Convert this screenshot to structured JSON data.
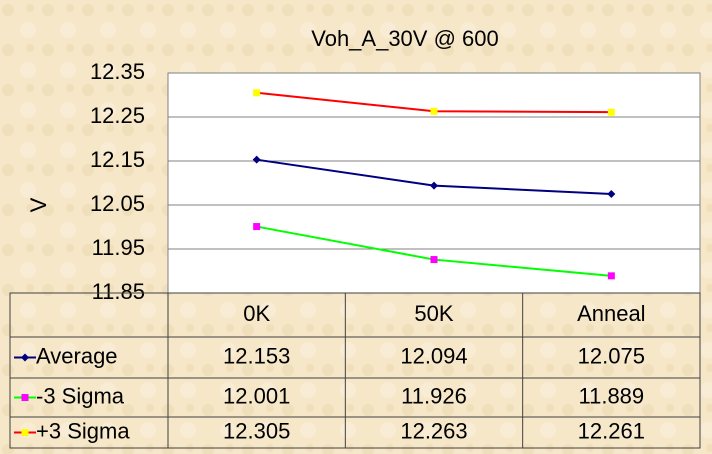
{
  "chart_data": {
    "type": "line",
    "title": "Voh_A_30V @ 600",
    "y_label": "V",
    "categories": [
      "0K",
      "50K",
      "Anneal"
    ],
    "series": [
      {
        "name": "Average",
        "color": "#000080",
        "marker_color": "#000080",
        "marker": "diamond",
        "values": [
          12.153,
          12.094,
          12.075
        ]
      },
      {
        "name": "-3 Sigma",
        "color": "#00ff00",
        "marker_color": "#ff00ff",
        "marker": "square",
        "values": [
          12.001,
          11.926,
          11.889
        ]
      },
      {
        "name": "+3 Sigma",
        "color": "#ff0000",
        "marker_color": "#ffff00",
        "marker": "square",
        "values": [
          12.305,
          12.263,
          12.261
        ]
      }
    ],
    "ylim": [
      11.85,
      12.35
    ],
    "yticks": [
      11.85,
      11.95,
      12.05,
      12.15,
      12.25,
      12.35
    ],
    "grid": true,
    "data_table": true
  }
}
